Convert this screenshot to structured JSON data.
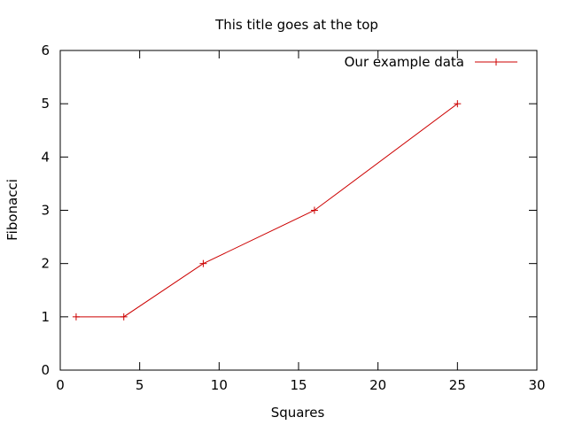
{
  "chart_data": {
    "type": "line",
    "title": "This title goes at the top",
    "xlabel": "Squares",
    "ylabel": "Fibonacci",
    "xlim": [
      0,
      30
    ],
    "ylim": [
      0,
      6
    ],
    "xticks": [
      0,
      5,
      10,
      15,
      20,
      25,
      30
    ],
    "yticks": [
      0,
      1,
      2,
      3,
      4,
      5,
      6
    ],
    "grid": false,
    "legend_position": "top-right",
    "series": [
      {
        "name": "Our example data",
        "color": "#cc0000",
        "marker": "plus",
        "x": [
          1,
          4,
          9,
          16,
          25
        ],
        "y": [
          1,
          1,
          2,
          3,
          5
        ]
      }
    ]
  }
}
